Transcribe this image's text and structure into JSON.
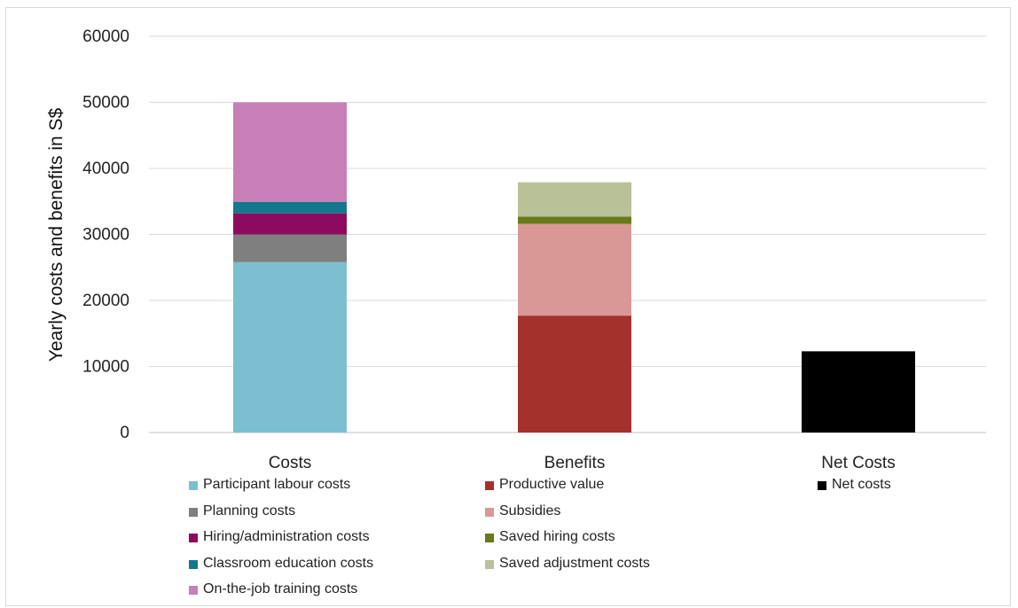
{
  "chart_data": {
    "type": "bar",
    "stacked": true,
    "ylabel": "Yearly costs and benefits in S$",
    "ylim": [
      0,
      60000
    ],
    "yticks": [
      0,
      10000,
      20000,
      30000,
      40000,
      50000,
      60000
    ],
    "grid": true,
    "categories": [
      "Costs",
      "Benefits",
      "Net Costs"
    ],
    "series": [
      {
        "name": "Participant labour costs",
        "color": "#7bbfd0",
        "values": [
          25800,
          0,
          0
        ]
      },
      {
        "name": "Planning costs",
        "color": "#7f7f7f",
        "values": [
          4200,
          0,
          0
        ]
      },
      {
        "name": "Hiring/administration costs",
        "color": "#8c0b5f",
        "values": [
          3200,
          0,
          0
        ]
      },
      {
        "name": "Classroom education costs",
        "color": "#12788e",
        "values": [
          1700,
          0,
          0
        ]
      },
      {
        "name": "On-the-job training costs",
        "color": "#c77fb8",
        "values": [
          15100,
          0,
          0
        ]
      },
      {
        "name": "Productive value",
        "color": "#a4312c",
        "values": [
          0,
          17700,
          0
        ]
      },
      {
        "name": "Subsidies",
        "color": "#d99896",
        "values": [
          0,
          13900,
          0
        ]
      },
      {
        "name": "Saved hiring costs",
        "color": "#6a7a1a",
        "values": [
          0,
          1100,
          0
        ]
      },
      {
        "name": "Saved adjustment costs",
        "color": "#b9c199",
        "values": [
          0,
          5200,
          0
        ]
      },
      {
        "name": "Net costs",
        "color": "#000000",
        "values": [
          0,
          0,
          12300
        ]
      }
    ],
    "legend_placement": "bottom",
    "legend_columns": [
      [
        "Participant labour costs",
        "Planning costs",
        "Hiring/administration costs",
        "Classroom education costs",
        "On-the-job training costs"
      ],
      [
        "Productive value",
        "Subsidies",
        "Saved hiring costs",
        "Saved adjustment costs"
      ],
      [
        "Net costs"
      ]
    ]
  }
}
